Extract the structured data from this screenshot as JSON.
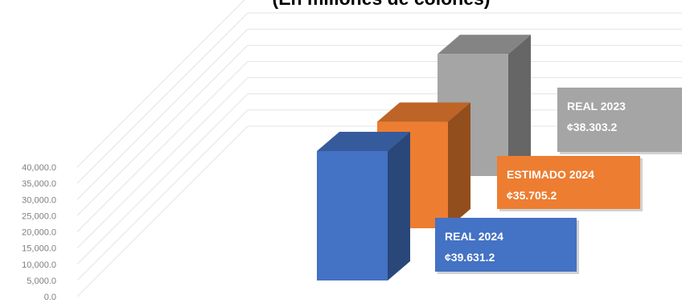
{
  "chart_data": {
    "type": "bar",
    "title": "(En millones de colones)",
    "ylim": [
      0,
      40000
    ],
    "y_ticks": [
      "40,000.0",
      "35,000.0",
      "30,000.0",
      "25,000.0",
      "20,000.0",
      "15,000.0",
      "10,000.0",
      "5,000.0",
      "0.0"
    ],
    "grid": true,
    "style": "3d-columns",
    "series": [
      {
        "name": "REAL 2024",
        "value": 39631.2,
        "value_label": "¢39.631.2",
        "color": "#4472c4"
      },
      {
        "name": "ESTIMADO 2024",
        "value": 35705.2,
        "value_label": "¢35.705.2",
        "color": "#ed7d31"
      },
      {
        "name": "REAL 2023",
        "value": 38303.2,
        "value_label": "¢38.303.2",
        "color": "#a5a5a5"
      }
    ]
  }
}
